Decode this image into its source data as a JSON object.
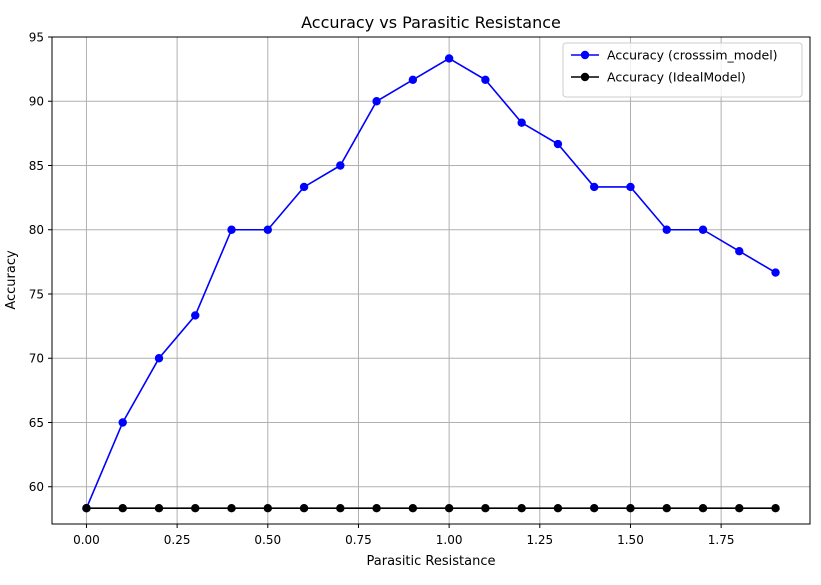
{
  "chart_data": {
    "type": "line",
    "title": "Accuracy vs Parasitic Resistance",
    "xlabel": "Parasitic Resistance",
    "ylabel": "Accuracy",
    "xlim": [
      -0.095,
      1.995
    ],
    "ylim": [
      57.1,
      95.0
    ],
    "xticks": [
      0.0,
      0.25,
      0.5,
      0.75,
      1.0,
      1.25,
      1.5,
      1.75
    ],
    "xtick_labels": [
      "0.00",
      "0.25",
      "0.50",
      "0.75",
      "1.00",
      "1.25",
      "1.50",
      "1.75"
    ],
    "yticks": [
      60,
      65,
      70,
      75,
      80,
      85,
      90,
      95
    ],
    "ytick_labels": [
      "60",
      "65",
      "70",
      "75",
      "80",
      "85",
      "90",
      "95"
    ],
    "grid": true,
    "legend_position": "top-right",
    "x": [
      0.0,
      0.1,
      0.2,
      0.3,
      0.4,
      0.5,
      0.6,
      0.7,
      0.8,
      0.9,
      1.0,
      1.1,
      1.2,
      1.3,
      1.4,
      1.5,
      1.6,
      1.7,
      1.8,
      1.9
    ],
    "series": [
      {
        "name": "Accuracy (crosssim_model)",
        "color": "#0000ff",
        "marker": "circle",
        "values": [
          58.33,
          65.0,
          70.0,
          73.33,
          80.0,
          80.0,
          83.33,
          85.0,
          90.0,
          91.67,
          93.33,
          91.67,
          88.33,
          86.67,
          83.33,
          83.33,
          80.0,
          80.0,
          78.33,
          76.67
        ]
      },
      {
        "name": "Accuracy (IdealModel)",
        "color": "#000000",
        "marker": "circle",
        "values": [
          58.33,
          58.33,
          58.33,
          58.33,
          58.33,
          58.33,
          58.33,
          58.33,
          58.33,
          58.33,
          58.33,
          58.33,
          58.33,
          58.33,
          58.33,
          58.33,
          58.33,
          58.33,
          58.33,
          58.33
        ]
      }
    ]
  }
}
